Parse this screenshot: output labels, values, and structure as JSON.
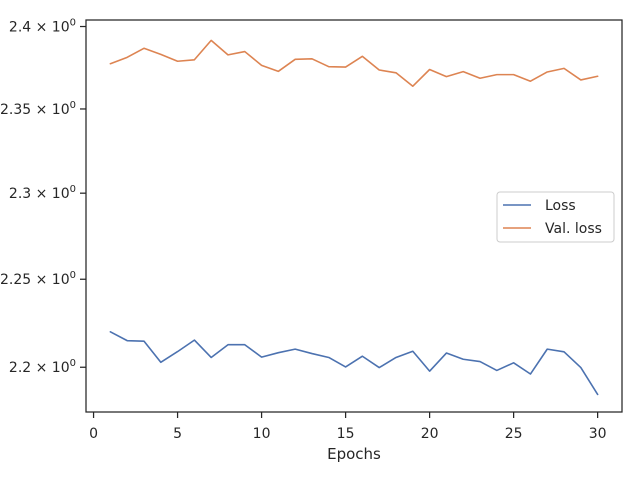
{
  "chart_data": {
    "type": "line",
    "title": "",
    "xlabel": "Epochs",
    "ylabel": "",
    "yscale": "log",
    "grid": false,
    "legend_position": "center-right",
    "xlim": [
      -0.45,
      31.45
    ],
    "ylim": [
      2.175,
      2.404
    ],
    "xticks": [
      0,
      5,
      10,
      15,
      20,
      25,
      30
    ],
    "xtick_labels": [
      "0",
      "5",
      "10",
      "15",
      "20",
      "25",
      "30"
    ],
    "yticks": [
      2.2,
      2.25,
      2.3,
      2.35,
      2.4
    ],
    "ytick_labels": [
      {
        "mantissa": "2.2",
        "base": "10",
        "exp": "0"
      },
      {
        "mantissa": "2.25",
        "base": "10",
        "exp": "0"
      },
      {
        "mantissa": "2.3",
        "base": "10",
        "exp": "0"
      },
      {
        "mantissa": "2.35",
        "base": "10",
        "exp": "0"
      },
      {
        "mantissa": "2.4",
        "base": "10",
        "exp": "0"
      }
    ],
    "x": [
      1,
      2,
      3,
      4,
      5,
      6,
      7,
      8,
      9,
      10,
      11,
      12,
      13,
      14,
      15,
      16,
      17,
      18,
      19,
      20,
      21,
      22,
      23,
      24,
      25,
      26,
      27,
      28,
      29,
      30
    ],
    "series": [
      {
        "name": "Loss",
        "color": "#4c72b0",
        "values": [
          2.22,
          2.215,
          2.2147,
          2.2028,
          2.2088,
          2.2153,
          2.2055,
          2.2127,
          2.2127,
          2.2057,
          2.2082,
          2.2102,
          2.2077,
          2.2055,
          2.2002,
          2.2062,
          2.1998,
          2.2055,
          2.209,
          2.1978,
          2.208,
          2.2045,
          2.2032,
          2.1982,
          2.2025,
          2.1962,
          2.2102,
          2.2087,
          2.1998,
          2.1848
        ]
      },
      {
        "name": "Val. loss",
        "color": "#dd8452",
        "values": [
          2.3773,
          2.3812,
          2.3867,
          2.383,
          2.3788,
          2.3797,
          2.3915,
          2.3827,
          2.3847,
          2.3763,
          2.3727,
          2.38,
          2.3803,
          2.3755,
          2.3753,
          2.3818,
          2.3735,
          2.3718,
          2.3637,
          2.3738,
          2.3695,
          2.3725,
          2.3685,
          2.3707,
          2.3707,
          2.3667,
          2.3723,
          2.3745,
          2.3675,
          2.3697
        ]
      }
    ]
  }
}
